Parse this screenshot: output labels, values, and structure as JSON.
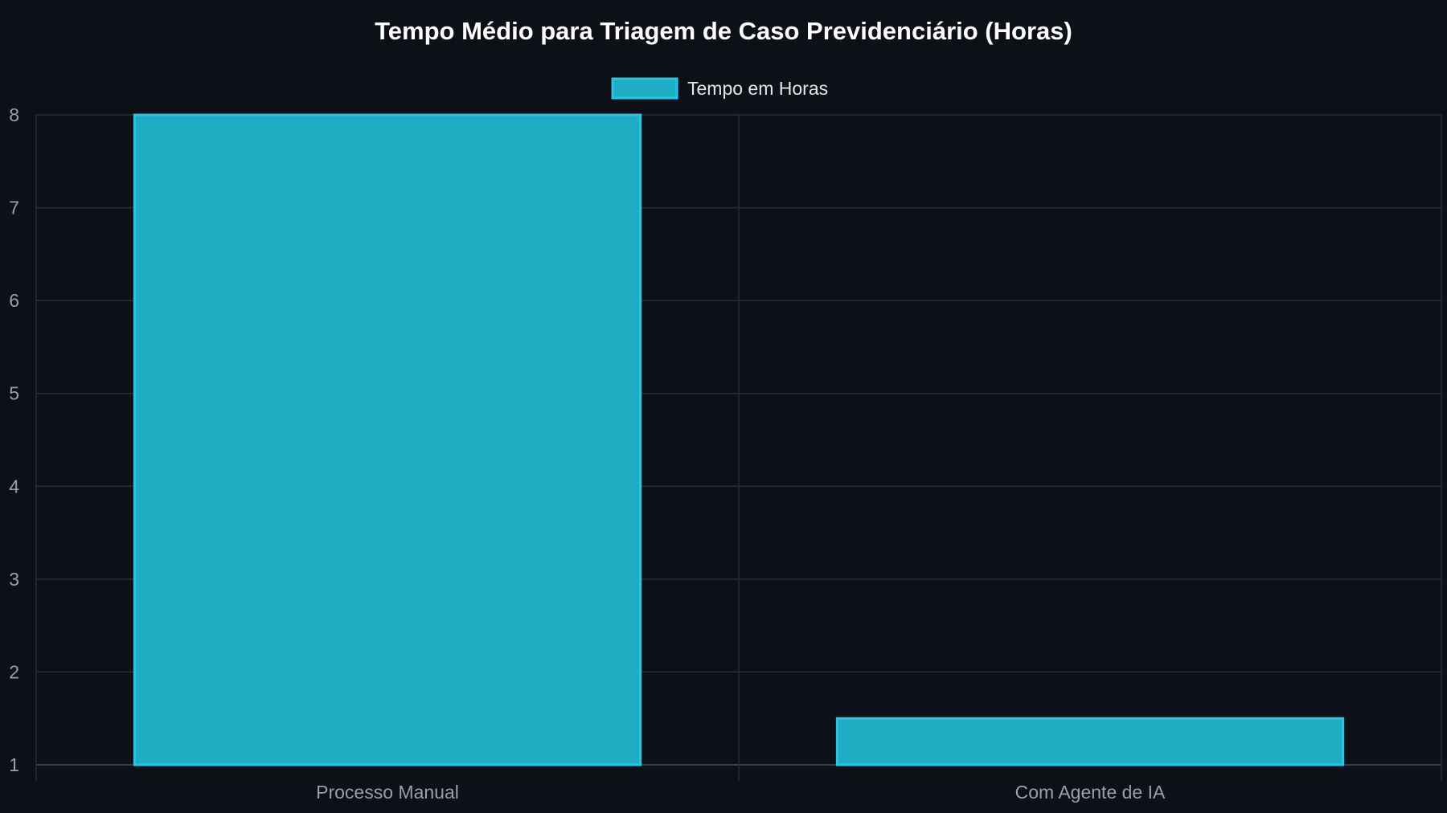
{
  "chart_data": {
    "type": "bar",
    "title": "Tempo Médio para Triagem de Caso Previdenciário (Horas)",
    "categories": [
      "Processo Manual",
      "Com Agente de IA"
    ],
    "series": [
      {
        "name": "Tempo em Horas",
        "values": [
          8,
          1.5
        ]
      }
    ],
    "xlabel": "",
    "ylabel": "",
    "ylim": [
      1,
      8
    ],
    "yticks": [
      "1",
      "2",
      "3",
      "4",
      "5",
      "6",
      "7",
      "8"
    ],
    "grid": true,
    "legend_position": "top-center",
    "colors": {
      "background": "#0d1017",
      "bar_fill": "#1fadc3",
      "bar_stroke": "#22c8e5",
      "grid": "#2a2e37",
      "axis_text": "#9aa0ab",
      "title": "#ffffff"
    }
  }
}
